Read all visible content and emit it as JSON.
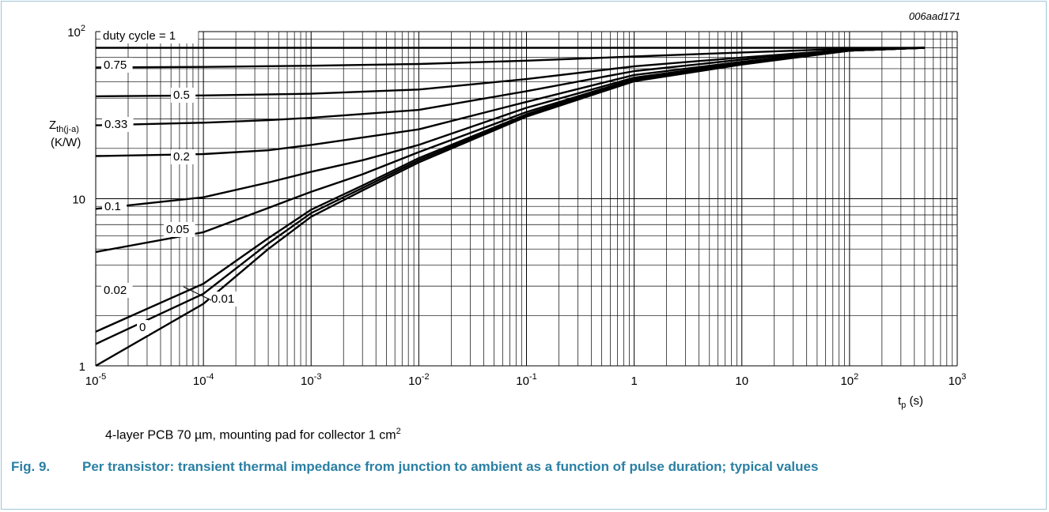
{
  "figure_id": "006aad171",
  "note": "4-layer PCB 70 µm, mounting pad for collector 1 cm",
  "note_sup": "2",
  "caption_number": "Fig. 9.",
  "caption_text": "Per transistor: transient thermal impedance from junction to ambient as a function of pulse duration; typical values",
  "colors": {
    "caption": "#2a7fa3",
    "border": "#9fc6d8",
    "curve": "#000000"
  },
  "chart_data": {
    "type": "line",
    "x_scale": "log",
    "y_scale": "log",
    "xlim": [
      1e-05,
      1000
    ],
    "ylim": [
      1,
      100
    ],
    "xlabel": {
      "main": "t",
      "sub": "p",
      "unit": " (s)"
    },
    "ylabel": {
      "main": "Z",
      "sub": "th(j-a)",
      "unit": "(K/W)"
    },
    "x_ticks": [
      {
        "value": 1e-05,
        "base": "10",
        "exp": "-5"
      },
      {
        "value": 0.0001,
        "base": "10",
        "exp": "-4"
      },
      {
        "value": 0.001,
        "base": "10",
        "exp": "-3"
      },
      {
        "value": 0.01,
        "base": "10",
        "exp": "-2"
      },
      {
        "value": 0.1,
        "base": "10",
        "exp": "-1"
      },
      {
        "value": 1,
        "base": "1",
        "exp": ""
      },
      {
        "value": 10,
        "base": "10",
        "exp": ""
      },
      {
        "value": 100,
        "base": "10",
        "exp": "2"
      },
      {
        "value": 1000,
        "base": "10",
        "exp": "3"
      }
    ],
    "y_ticks": [
      {
        "value": 1,
        "base": "1",
        "exp": ""
      },
      {
        "value": 10,
        "base": "10",
        "exp": ""
      },
      {
        "value": 100,
        "base": "10",
        "exp": "2"
      }
    ],
    "grid": true,
    "series": [
      {
        "name": "duty cycle = 1",
        "x": [
          1e-05,
          500
        ],
        "y": [
          80,
          80
        ]
      },
      {
        "name": "0.75",
        "x": [
          1e-05,
          0.0001,
          0.001,
          0.01,
          0.1,
          1,
          10,
          100,
          500
        ],
        "y": [
          61,
          61.5,
          62.5,
          64,
          67,
          71,
          75,
          79,
          80
        ]
      },
      {
        "name": "0.5",
        "x": [
          1e-05,
          0.0001,
          0.001,
          0.01,
          0.1,
          1,
          10,
          100,
          500
        ],
        "y": [
          41,
          41.5,
          42.5,
          45,
          52,
          62,
          70,
          78,
          80
        ]
      },
      {
        "name": "0.33",
        "x": [
          1e-05,
          0.0001,
          0.0004,
          0.001,
          0.01,
          0.1,
          1,
          10,
          100,
          500
        ],
        "y": [
          27.5,
          28.5,
          29.5,
          30.5,
          34,
          44,
          58,
          68,
          78,
          80
        ]
      },
      {
        "name": "0.2",
        "x": [
          1e-05,
          0.0001,
          0.0004,
          0.001,
          0.01,
          0.1,
          1,
          10,
          100,
          500
        ],
        "y": [
          18,
          18.5,
          19.5,
          21,
          26,
          38,
          55,
          66,
          77,
          80
        ]
      },
      {
        "name": "0.1",
        "x": [
          1e-05,
          0.0001,
          0.0004,
          0.001,
          0.003,
          0.01,
          0.1,
          1,
          10,
          100,
          500
        ],
        "y": [
          8.7,
          10.2,
          12.5,
          14.5,
          17,
          21,
          35,
          53,
          65,
          77,
          80
        ]
      },
      {
        "name": "0.05",
        "x": [
          1e-05,
          0.0001,
          0.0004,
          0.001,
          0.003,
          0.01,
          0.1,
          1,
          10,
          100,
          500
        ],
        "y": [
          4.8,
          6.3,
          8.8,
          11,
          14,
          19,
          33,
          52,
          64.5,
          77,
          80
        ]
      },
      {
        "name": "0.02",
        "x": [
          1e-05,
          0.0001,
          0.0004,
          0.001,
          0.003,
          0.01,
          0.1,
          1,
          10,
          100,
          500
        ],
        "y": [
          1.6,
          3.1,
          5.8,
          8.6,
          12,
          17.5,
          32,
          51.5,
          64,
          77,
          80
        ]
      },
      {
        "name": "0.01",
        "x": [
          1e-05,
          0.0001,
          0.0004,
          0.001,
          0.003,
          0.01,
          0.1,
          1,
          10,
          100,
          500
        ],
        "y": [
          1.35,
          2.7,
          5.4,
          8.2,
          11.6,
          17,
          31.5,
          51,
          64,
          77,
          80
        ]
      },
      {
        "name": "0",
        "x": [
          1e-05,
          0.0001,
          0.0004,
          0.001,
          0.003,
          0.01,
          0.1,
          1,
          10,
          100,
          500
        ],
        "y": [
          1.0,
          2.35,
          5.0,
          7.8,
          11.2,
          16.5,
          31,
          50.5,
          63.5,
          77,
          80
        ]
      }
    ]
  }
}
